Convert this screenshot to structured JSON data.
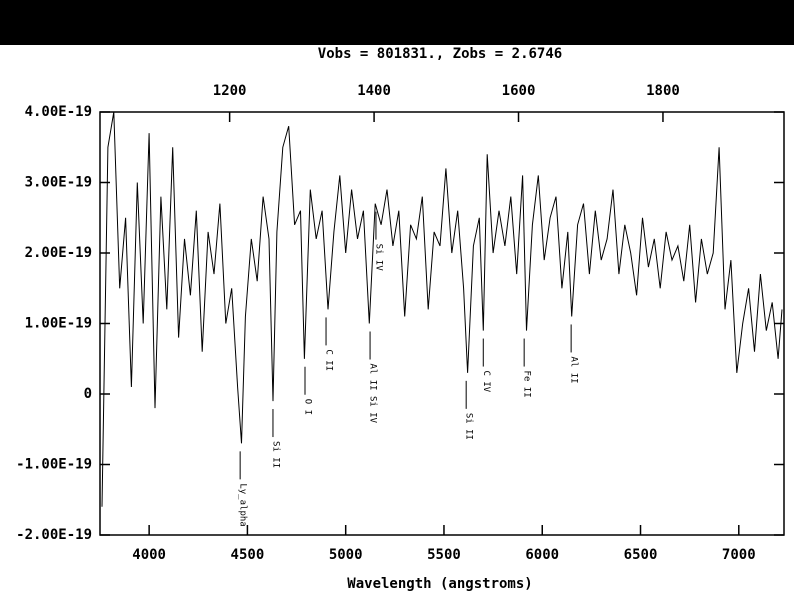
{
  "chart_data": {
    "type": "line",
    "title": "Vobs = 801831., Zobs = 2.6746",
    "xlabel": "Wavelength (angstroms)",
    "color": "#000000",
    "xlim": [
      3750,
      7230
    ],
    "xticks": [
      4000,
      4500,
      5000,
      5500,
      6000,
      6500,
      7000
    ],
    "x2lim": [
      1020.5,
      1967.6
    ],
    "x2ticks": [
      1200,
      1400,
      1600,
      1800
    ],
    "ylim": [
      -2e-19,
      4e-19
    ],
    "yticks": [
      {
        "value": -2e-19,
        "label": "-2.00E-19"
      },
      {
        "value": -1e-19,
        "label": "-1.00E-19"
      },
      0,
      {
        "value": 1e-19,
        "label": "1.00E-19"
      },
      {
        "value": 2e-19,
        "label": "2.00E-19"
      },
      {
        "value": 3e-19,
        "label": "3.00E-19"
      },
      {
        "value": 4e-19,
        "label": "4.00E-19"
      }
    ],
    "x": [
      3760,
      3790,
      3820,
      3850,
      3880,
      3910,
      3940,
      3970,
      4000,
      4030,
      4060,
      4090,
      4120,
      4150,
      4180,
      4210,
      4240,
      4270,
      4300,
      4330,
      4360,
      4390,
      4420,
      4450,
      4470,
      4490,
      4520,
      4550,
      4580,
      4610,
      4630,
      4650,
      4680,
      4710,
      4740,
      4770,
      4790,
      4820,
      4850,
      4880,
      4910,
      4940,
      4970,
      5000,
      5030,
      5060,
      5090,
      5120,
      5150,
      5180,
      5210,
      5240,
      5270,
      5300,
      5330,
      5360,
      5390,
      5420,
      5450,
      5480,
      5510,
      5540,
      5570,
      5600,
      5620,
      5650,
      5680,
      5700,
      5720,
      5750,
      5780,
      5810,
      5840,
      5870,
      5900,
      5920,
      5950,
      5980,
      6010,
      6040,
      6070,
      6100,
      6130,
      6150,
      6180,
      6210,
      6240,
      6270,
      6300,
      6330,
      6360,
      6390,
      6420,
      6450,
      6480,
      6510,
      6540,
      6570,
      6600,
      6630,
      6660,
      6690,
      6720,
      6750,
      6780,
      6810,
      6840,
      6870,
      6900,
      6930,
      6960,
      6990,
      7020,
      7050,
      7080,
      7110,
      7140,
      7170,
      7200,
      7220
    ],
    "values": [
      -1.6e-19,
      3.5e-19,
      4e-19,
      1.5e-19,
      2.5e-19,
      1e-20,
      3e-19,
      1e-19,
      3.7e-19,
      -2e-20,
      2.8e-19,
      1.2e-19,
      3.5e-19,
      8e-20,
      2.2e-19,
      1.4e-19,
      2.6e-19,
      6e-20,
      2.3e-19,
      1.7e-19,
      2.7e-19,
      1e-19,
      1.5e-19,
      1e-20,
      -7e-20,
      1.1e-19,
      2.2e-19,
      1.6e-19,
      2.8e-19,
      2.2e-19,
      -1e-20,
      2.3e-19,
      3.5e-19,
      3.8e-19,
      2.4e-19,
      2.6e-19,
      5e-20,
      2.9e-19,
      2.2e-19,
      2.6e-19,
      1.2e-19,
      2.3e-19,
      3.1e-19,
      2e-19,
      2.9e-19,
      2.2e-19,
      2.6e-19,
      1e-19,
      2.7e-19,
      2.4e-19,
      2.9e-19,
      2.1e-19,
      2.6e-19,
      1.1e-19,
      2.4e-19,
      2.2e-19,
      2.8e-19,
      1.2e-19,
      2.3e-19,
      2.1e-19,
      3.2e-19,
      2e-19,
      2.6e-19,
      1.5e-19,
      3e-20,
      2.1e-19,
      2.5e-19,
      9e-20,
      3.4e-19,
      2e-19,
      2.6e-19,
      2.1e-19,
      2.8e-19,
      1.7e-19,
      3.1e-19,
      9e-20,
      2.4e-19,
      3.1e-19,
      1.9e-19,
      2.5e-19,
      2.8e-19,
      1.5e-19,
      2.3e-19,
      1.1e-19,
      2.4e-19,
      2.7e-19,
      1.7e-19,
      2.6e-19,
      1.9e-19,
      2.2e-19,
      2.9e-19,
      1.7e-19,
      2.4e-19,
      2e-19,
      1.4e-19,
      2.5e-19,
      1.8e-19,
      2.2e-19,
      1.5e-19,
      2.3e-19,
      1.9e-19,
      2.1e-19,
      1.6e-19,
      2.4e-19,
      1.3e-19,
      2.2e-19,
      1.7e-19,
      2e-19,
      3.5e-19,
      1.2e-19,
      1.9e-19,
      3e-20,
      1e-19,
      1.5e-19,
      6e-20,
      1.7e-19,
      9e-20,
      1.3e-19,
      5e-20,
      1.2e-19
    ],
    "annotations": [
      {
        "label": "Ly_alpha",
        "x": 4463
      },
      {
        "label": "Si II",
        "x": 4630
      },
      {
        "label": "O I",
        "x": 4793
      },
      {
        "label": "C II",
        "x": 4900
      },
      {
        "label": "Al II Si IV",
        "x": 5124
      },
      {
        "label": "Si IV",
        "x": 5154
      },
      {
        "label": "Si II",
        "x": 5613
      },
      {
        "label": "C IV",
        "x": 5700
      },
      {
        "label": "Fe II",
        "x": 5908
      },
      {
        "label": "Al II",
        "x": 6147
      }
    ]
  }
}
